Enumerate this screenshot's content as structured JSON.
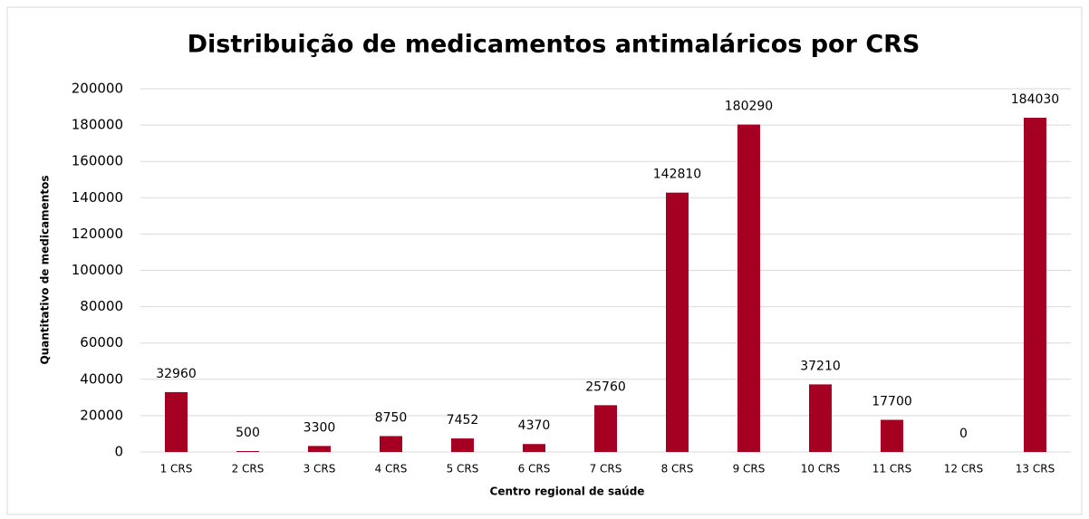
{
  "chart_data": {
    "type": "bar",
    "title": "Distribuição de medicamentos antimaláricos por CRS",
    "x_label": "Centro regional de saúde",
    "y_label": "Quantitativo de medicamentos",
    "categories": [
      "1 CRS",
      "2 CRS",
      "3 CRS",
      "4 CRS",
      "5 CRS",
      "6 CRS",
      "7 CRS",
      "8 CRS",
      "9 CRS",
      "10 CRS",
      "11 CRS",
      "12 CRS",
      "13 CRS"
    ],
    "values": [
      32960,
      500,
      3300,
      8750,
      7452,
      4370,
      25760,
      142810,
      180290,
      37210,
      17700,
      0,
      184030
    ],
    "color": "#a50021",
    "ylim": [
      0,
      200000
    ],
    "yticks": [
      0,
      20000,
      40000,
      60000,
      80000,
      100000,
      120000,
      140000,
      160000,
      180000,
      200000
    ],
    "grid": true
  }
}
